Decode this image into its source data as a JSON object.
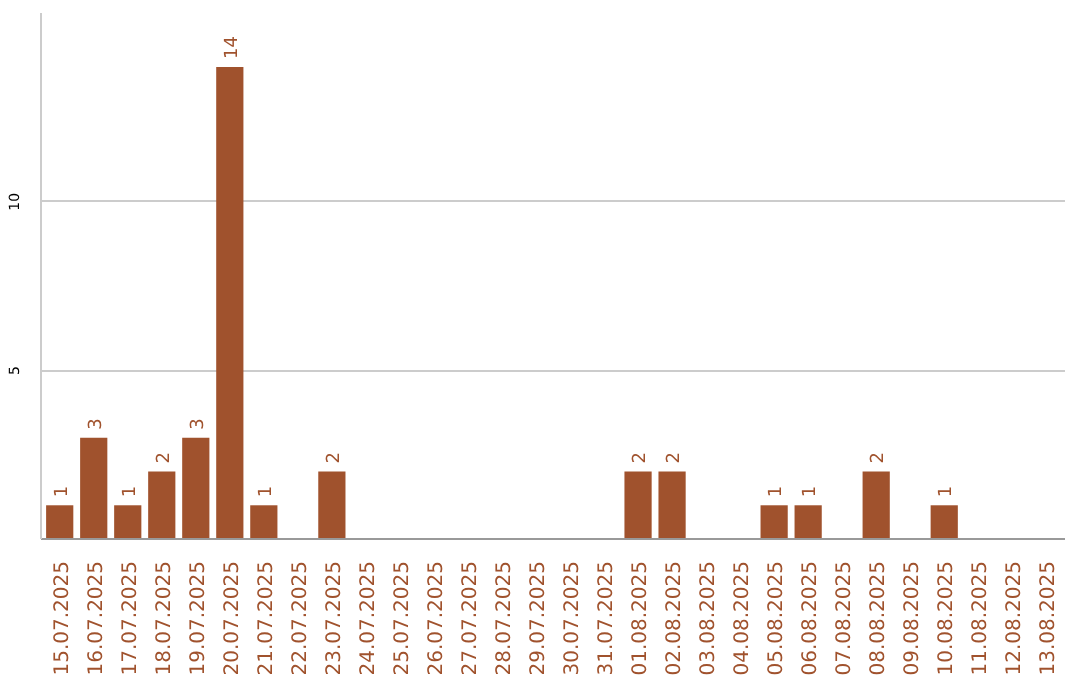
{
  "chart_data": {
    "type": "bar",
    "categories": [
      "15.07.2025",
      "16.07.2025",
      "17.07.2025",
      "18.07.2025",
      "19.07.2025",
      "20.07.2025",
      "21.07.2025",
      "22.07.2025",
      "23.07.2025",
      "24.07.2025",
      "25.07.2025",
      "26.07.2025",
      "27.07.2025",
      "28.07.2025",
      "29.07.2025",
      "30.07.2025",
      "31.07.2025",
      "01.08.2025",
      "02.08.2025",
      "03.08.2025",
      "04.08.2025",
      "05.08.2025",
      "06.08.2025",
      "07.08.2025",
      "08.08.2025",
      "09.08.2025",
      "10.08.2025",
      "11.08.2025",
      "12.08.2025",
      "13.08.2025"
    ],
    "values": [
      1,
      3,
      1,
      2,
      3,
      14,
      1,
      0,
      2,
      0,
      0,
      0,
      0,
      0,
      0,
      0,
      0,
      2,
      2,
      0,
      0,
      1,
      1,
      0,
      2,
      0,
      1,
      0,
      0,
      0
    ],
    "value_labels": [
      "1",
      "3",
      "1",
      "2",
      "3",
      "14",
      "1",
      null,
      "2",
      null,
      null,
      null,
      null,
      null,
      null,
      null,
      null,
      "2",
      "2",
      null,
      null,
      "1",
      "1",
      null,
      "2",
      null,
      "1",
      null,
      null,
      null
    ],
    "color": "#a0522d",
    "ylim": [
      0,
      15.6
    ],
    "yticks": [
      5,
      10
    ],
    "grid": "y"
  }
}
